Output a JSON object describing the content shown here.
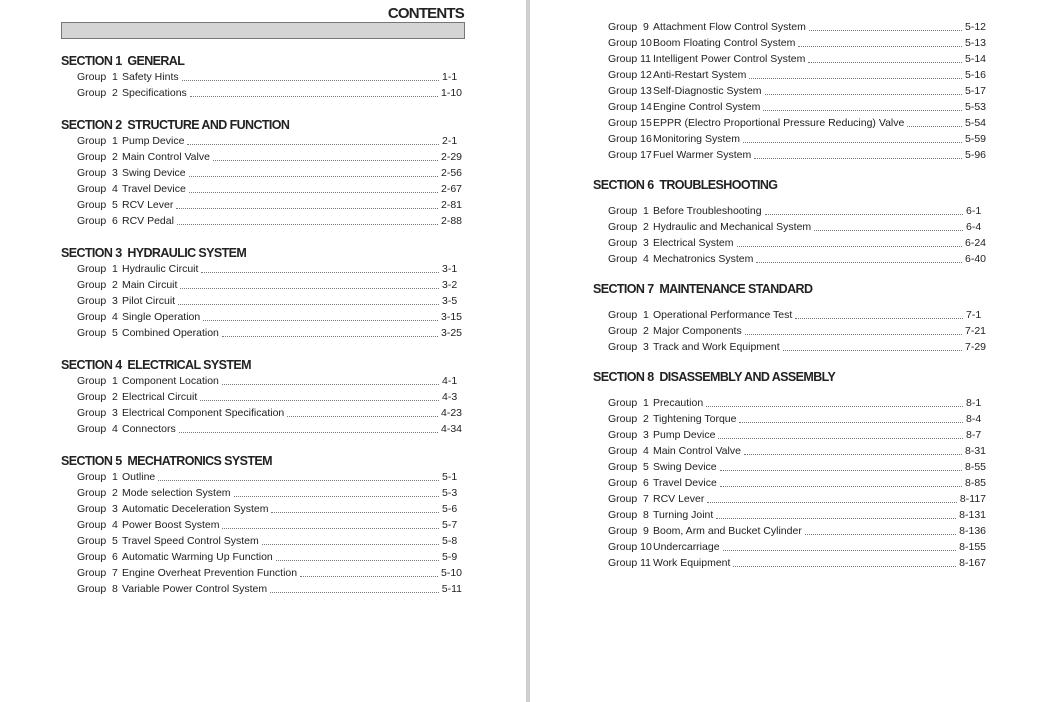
{
  "title": "CONTENTS",
  "left": {
    "sections": [
      {
        "heading": "SECTION 1  GENERAL",
        "groups": [
          {
            "label": "Group  1",
            "title": "Safety Hints",
            "page": "1-1"
          },
          {
            "label": "Group  2",
            "title": "Specifications",
            "page": "1-10"
          }
        ]
      },
      {
        "heading": "SECTION 2  STRUCTURE AND FUNCTION",
        "groups": [
          {
            "label": "Group  1",
            "title": "Pump Device",
            "page": "2-1"
          },
          {
            "label": "Group  2",
            "title": "Main Control Valve",
            "page": "2-29"
          },
          {
            "label": "Group  3",
            "title": "Swing Device",
            "page": "2-56"
          },
          {
            "label": "Group  4",
            "title": "Travel Device",
            "page": "2-67"
          },
          {
            "label": "Group  5",
            "title": "RCV Lever",
            "page": "2-81"
          },
          {
            "label": "Group  6",
            "title": "RCV Pedal",
            "page": "2-88"
          }
        ]
      },
      {
        "heading": "SECTION 3  HYDRAULIC SYSTEM",
        "groups": [
          {
            "label": "Group  1",
            "title": "Hydraulic Circuit",
            "page": "3-1"
          },
          {
            "label": "Group  2",
            "title": "Main Circuit",
            "page": "3-2"
          },
          {
            "label": "Group  3",
            "title": "Pilot Circuit",
            "page": "3-5"
          },
          {
            "label": "Group  4",
            "title": "Single Operation",
            "page": "3-15"
          },
          {
            "label": "Group  5",
            "title": "Combined Operation",
            "page": "3-25"
          }
        ]
      },
      {
        "heading": "SECTION 4  ELECTRICAL SYSTEM",
        "groups": [
          {
            "label": "Group  1",
            "title": "Component Location",
            "page": "4-1"
          },
          {
            "label": "Group  2",
            "title": "Electrical Circuit",
            "page": "4-3"
          },
          {
            "label": "Group  3",
            "title": "Electrical Component Specification",
            "page": "4-23"
          },
          {
            "label": "Group  4",
            "title": "Connectors",
            "page": "4-34"
          }
        ]
      },
      {
        "heading": "SECTION 5  MECHATRONICS SYSTEM",
        "groups": [
          {
            "label": "Group  1",
            "title": "Outline",
            "page": "5-1"
          },
          {
            "label": "Group  2",
            "title": "Mode selection System",
            "page": "5-3"
          },
          {
            "label": "Group  3",
            "title": "Automatic Deceleration System",
            "page": "5-6"
          },
          {
            "label": "Group  4",
            "title": "Power Boost System",
            "page": "5-7"
          },
          {
            "label": "Group  5",
            "title": "Travel Speed Control System",
            "page": "5-8"
          },
          {
            "label": "Group  6",
            "title": "Automatic Warming Up Function",
            "page": "5-9"
          },
          {
            "label": "Group  7",
            "title": "Engine Overheat Prevention Function",
            "page": "5-10"
          },
          {
            "label": "Group  8",
            "title": "Variable Power Control System",
            "page": "5-11"
          }
        ]
      }
    ]
  },
  "right": {
    "continued_groups": [
      {
        "label": "Group  9",
        "title": "Attachment Flow Control System",
        "page": "5-12"
      },
      {
        "label": "Group 10",
        "title": "Boom Floating Control System",
        "page": "5-13"
      },
      {
        "label": "Group 11",
        "title": "Intelligent Power Control System",
        "page": "5-14"
      },
      {
        "label": "Group 12",
        "title": "Anti-Restart System",
        "page": "5-16"
      },
      {
        "label": "Group 13",
        "title": "Self-Diagnostic System",
        "page": "5-17"
      },
      {
        "label": "Group 14",
        "title": "Engine Control System",
        "page": "5-53"
      },
      {
        "label": "Group 15",
        "title": "EPPR (Electro Proportional Pressure Reducing) Valve",
        "page": "5-54"
      },
      {
        "label": "Group 16",
        "title": "Monitoring System",
        "page": "5-59"
      },
      {
        "label": "Group 17",
        "title": "Fuel Warmer System",
        "page": "5-96"
      }
    ],
    "sections": [
      {
        "heading": "SECTION 6  TROUBLESHOOTING",
        "groups": [
          {
            "label": "Group  1",
            "title": "Before Troubleshooting",
            "page": "6-1"
          },
          {
            "label": "Group  2",
            "title": "Hydraulic and Mechanical System",
            "page": "6-4"
          },
          {
            "label": "Group  3",
            "title": "Electrical System",
            "page": "6-24"
          },
          {
            "label": "Group  4",
            "title": "Mechatronics System",
            "page": "6-40"
          }
        ]
      },
      {
        "heading": "SECTION 7  MAINTENANCE STANDARD",
        "groups": [
          {
            "label": "Group  1",
            "title": "Operational Performance Test",
            "page": "7-1"
          },
          {
            "label": "Group  2",
            "title": "Major Components",
            "page": "7-21"
          },
          {
            "label": "Group  3",
            "title": "Track and Work Equipment",
            "page": "7-29"
          }
        ]
      },
      {
        "heading": "SECTION 8  DISASSEMBLY AND ASSEMBLY",
        "groups": [
          {
            "label": "Group  1",
            "title": "Precaution",
            "page": "8-1"
          },
          {
            "label": "Group  2",
            "title": "Tightening Torque",
            "page": "8-4"
          },
          {
            "label": "Group  3",
            "title": "Pump Device",
            "page": "8-7"
          },
          {
            "label": "Group  4",
            "title": "Main Control Valve",
            "page": "8-31"
          },
          {
            "label": "Group  5",
            "title": "Swing Device",
            "page": "8-55"
          },
          {
            "label": "Group  6",
            "title": "Travel Device",
            "page": "8-85"
          },
          {
            "label": "Group  7",
            "title": "RCV Lever",
            "page": "8-117"
          },
          {
            "label": "Group  8",
            "title": "Turning Joint",
            "page": "8-131"
          },
          {
            "label": "Group  9",
            "title": "Boom, Arm and Bucket Cylinder",
            "page": "8-136"
          },
          {
            "label": "Group 10",
            "title": "Undercarriage",
            "page": "8-155"
          },
          {
            "label": "Group 11",
            "title": "Work Equipment",
            "page": "8-167"
          }
        ]
      }
    ]
  }
}
